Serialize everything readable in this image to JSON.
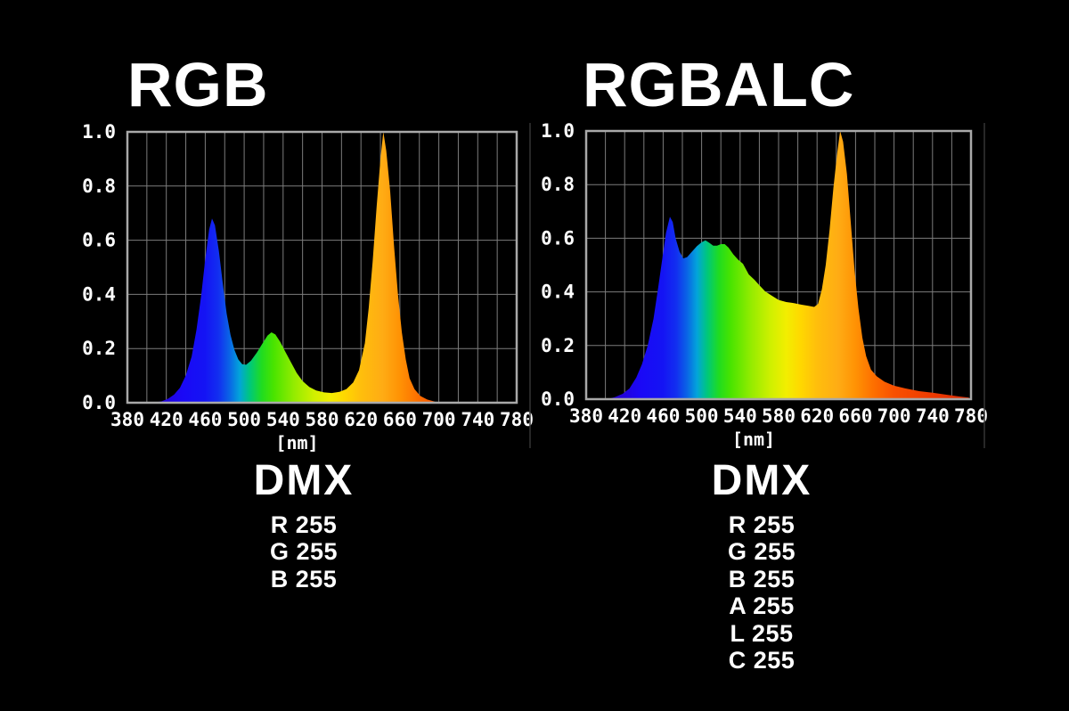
{
  "colors": {
    "background": "#000000",
    "text": "#ffffff",
    "plot_border": "#a9a9a9",
    "grid_line": "#7c7c7c",
    "photo_edge_line": "#343434",
    "spectral_stops": [
      [
        0.0,
        "#0d00a8"
      ],
      [
        0.08,
        "#2400d2"
      ],
      [
        0.14,
        "#1a08f6"
      ],
      [
        0.2,
        "#1414f4"
      ],
      [
        0.235,
        "#1230f0"
      ],
      [
        0.262,
        "#0a64e6"
      ],
      [
        0.288,
        "#02a4da"
      ],
      [
        0.315,
        "#00c87a"
      ],
      [
        0.345,
        "#20dc20"
      ],
      [
        0.375,
        "#48e400"
      ],
      [
        0.43,
        "#96ec00"
      ],
      [
        0.48,
        "#d0f000"
      ],
      [
        0.52,
        "#f2ee00"
      ],
      [
        0.557,
        "#ffd800"
      ],
      [
        0.6,
        "#ffbe0c"
      ],
      [
        0.655,
        "#ffac14"
      ],
      [
        0.7,
        "#ff9204"
      ],
      [
        0.75,
        "#fd6d00"
      ],
      [
        0.8,
        "#f85000"
      ],
      [
        0.9,
        "#ee3a00"
      ],
      [
        1.0,
        "#d82800"
      ]
    ]
  },
  "chart_data": [
    {
      "type": "area",
      "title": "RGB",
      "xlabel": "[nm]",
      "ylabel": "",
      "xlim": [
        380,
        780
      ],
      "ylim": [
        0,
        1
      ],
      "xticks": [
        380,
        420,
        460,
        500,
        540,
        580,
        620,
        660,
        700,
        740,
        780
      ],
      "ytick_labels": [
        "1.0",
        "0.8",
        "0.6",
        "0.4",
        "0.2",
        "0.0"
      ],
      "grid": {
        "x_step_nm": 20,
        "y_step": 0.2,
        "on": true
      },
      "fill": "spectral-gradient",
      "legend": "none",
      "points": [
        [
          405,
          0
        ],
        [
          415,
          0.005
        ],
        [
          422,
          0.015
        ],
        [
          428,
          0.03
        ],
        [
          434,
          0.055
        ],
        [
          440,
          0.1
        ],
        [
          446,
          0.17
        ],
        [
          451,
          0.27
        ],
        [
          456,
          0.4
        ],
        [
          460,
          0.53
        ],
        [
          464,
          0.64
        ],
        [
          467,
          0.68
        ],
        [
          470,
          0.655
        ],
        [
          474,
          0.56
        ],
        [
          478,
          0.44
        ],
        [
          482,
          0.33
        ],
        [
          486,
          0.25
        ],
        [
          490,
          0.195
        ],
        [
          494,
          0.16
        ],
        [
          498,
          0.142
        ],
        [
          502,
          0.14
        ],
        [
          507,
          0.155
        ],
        [
          513,
          0.185
        ],
        [
          519,
          0.22
        ],
        [
          524,
          0.248
        ],
        [
          528,
          0.26
        ],
        [
          532,
          0.252
        ],
        [
          537,
          0.225
        ],
        [
          542,
          0.19
        ],
        [
          548,
          0.15
        ],
        [
          554,
          0.11
        ],
        [
          560,
          0.08
        ],
        [
          567,
          0.058
        ],
        [
          574,
          0.045
        ],
        [
          582,
          0.038
        ],
        [
          590,
          0.036
        ],
        [
          598,
          0.04
        ],
        [
          605,
          0.05
        ],
        [
          612,
          0.075
        ],
        [
          618,
          0.12
        ],
        [
          624,
          0.22
        ],
        [
          628,
          0.35
        ],
        [
          632,
          0.52
        ],
        [
          636,
          0.72
        ],
        [
          640,
          0.9
        ],
        [
          643,
          1.0
        ],
        [
          646,
          0.93
        ],
        [
          650,
          0.78
        ],
        [
          654,
          0.58
        ],
        [
          658,
          0.4
        ],
        [
          662,
          0.26
        ],
        [
          666,
          0.16
        ],
        [
          670,
          0.09
        ],
        [
          675,
          0.05
        ],
        [
          681,
          0.025
        ],
        [
          688,
          0.012
        ],
        [
          695,
          0.005
        ],
        [
          699,
          0
        ]
      ]
    },
    {
      "type": "area",
      "title": "RGBALC",
      "xlabel": "[nm]",
      "ylabel": "",
      "xlim": [
        380,
        780
      ],
      "ylim": [
        0,
        1
      ],
      "xticks": [
        380,
        420,
        460,
        500,
        540,
        580,
        620,
        660,
        700,
        740,
        780
      ],
      "ytick_labels": [
        "1.0",
        "0.8",
        "0.6",
        "0.4",
        "0.2",
        "0.0"
      ],
      "grid": {
        "x_step_nm": 20,
        "y_step": 0.2,
        "on": true
      },
      "fill": "spectral-gradient",
      "legend": "none",
      "points": [
        [
          402,
          0
        ],
        [
          410,
          0.008
        ],
        [
          418,
          0.02
        ],
        [
          425,
          0.04
        ],
        [
          432,
          0.08
        ],
        [
          438,
          0.13
        ],
        [
          444,
          0.2
        ],
        [
          450,
          0.3
        ],
        [
          455,
          0.42
        ],
        [
          459,
          0.52
        ],
        [
          463,
          0.62
        ],
        [
          467,
          0.68
        ],
        [
          470,
          0.66
        ],
        [
          473,
          0.6
        ],
        [
          477,
          0.55
        ],
        [
          481,
          0.525
        ],
        [
          485,
          0.53
        ],
        [
          490,
          0.55
        ],
        [
          495,
          0.57
        ],
        [
          500,
          0.585
        ],
        [
          504,
          0.592
        ],
        [
          508,
          0.583
        ],
        [
          512,
          0.572
        ],
        [
          516,
          0.572
        ],
        [
          520,
          0.578
        ],
        [
          524,
          0.578
        ],
        [
          528,
          0.565
        ],
        [
          533,
          0.54
        ],
        [
          538,
          0.52
        ],
        [
          543,
          0.505
        ],
        [
          549,
          0.465
        ],
        [
          555,
          0.445
        ],
        [
          560,
          0.425
        ],
        [
          566,
          0.402
        ],
        [
          572,
          0.388
        ],
        [
          580,
          0.37
        ],
        [
          588,
          0.362
        ],
        [
          596,
          0.358
        ],
        [
          604,
          0.352
        ],
        [
          611,
          0.348
        ],
        [
          617,
          0.344
        ],
        [
          621,
          0.355
        ],
        [
          625,
          0.41
        ],
        [
          629,
          0.5
        ],
        [
          633,
          0.63
        ],
        [
          637,
          0.79
        ],
        [
          641,
          0.92
        ],
        [
          644,
          1.0
        ],
        [
          647,
          0.96
        ],
        [
          651,
          0.84
        ],
        [
          655,
          0.66
        ],
        [
          659,
          0.48
        ],
        [
          663,
          0.34
        ],
        [
          667,
          0.23
        ],
        [
          671,
          0.16
        ],
        [
          676,
          0.11
        ],
        [
          682,
          0.085
        ],
        [
          690,
          0.065
        ],
        [
          700,
          0.05
        ],
        [
          712,
          0.04
        ],
        [
          726,
          0.03
        ],
        [
          740,
          0.024
        ],
        [
          756,
          0.016
        ],
        [
          768,
          0.01
        ],
        [
          778,
          0.006
        ]
      ]
    }
  ],
  "dmx_panels": [
    {
      "heading": "DMX",
      "lines": [
        "R 255",
        "G 255",
        "B 255"
      ]
    },
    {
      "heading": "DMX",
      "lines": [
        "R 255",
        "G 255",
        "B 255",
        "A 255",
        "L 255",
        "C 255"
      ]
    }
  ]
}
